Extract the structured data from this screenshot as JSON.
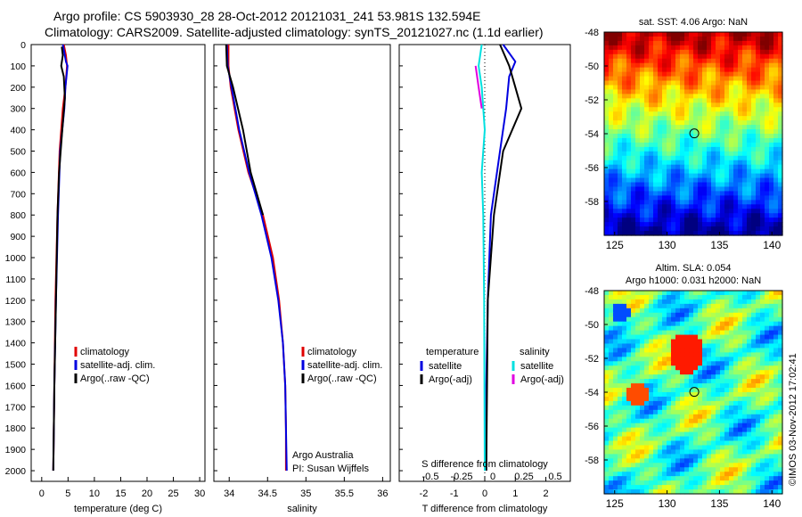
{
  "header": {
    "title_line1": "Argo profile: CS 5903930_28 28-Oct-2012 20121031_241 53.981S 132.594E",
    "title_line2": "Climatology: CARS2009. Satellite-adjusted climatology: synTS_20121027.nc (1.1d earlier)"
  },
  "chart_data": [
    {
      "type": "line",
      "xlabel": "temperature (deg C)",
      "xlim": [
        -2,
        31
      ],
      "xticks": [
        0,
        5,
        10,
        15,
        20,
        25,
        30
      ],
      "ylim": [
        0,
        2050
      ],
      "yticks": [
        0,
        100,
        200,
        300,
        400,
        500,
        600,
        700,
        800,
        900,
        1000,
        1100,
        1200,
        1300,
        1400,
        1500,
        1600,
        1700,
        1800,
        1900,
        2000
      ],
      "y_reversed": true,
      "legend": [
        "climatology",
        "satellite-adj. clim.",
        "Argo(..raw -QC)"
      ],
      "series": [
        {
          "name": "climatology",
          "color": "#e00000",
          "points": [
            [
              4.2,
              0
            ],
            [
              4.6,
              50
            ],
            [
              4.8,
              100
            ],
            [
              4.5,
              200
            ],
            [
              4.0,
              300
            ],
            [
              3.4,
              500
            ],
            [
              3.0,
              800
            ],
            [
              2.6,
              1200
            ],
            [
              2.4,
              1600
            ],
            [
              2.2,
              2000
            ]
          ]
        },
        {
          "name": "satellite-adj. clim.",
          "color": "#0000e0",
          "points": [
            [
              4.0,
              0
            ],
            [
              4.6,
              80
            ],
            [
              4.9,
              100
            ],
            [
              4.5,
              200
            ],
            [
              4.3,
              300
            ],
            [
              3.5,
              500
            ],
            [
              3.1,
              800
            ],
            [
              2.7,
              1200
            ],
            [
              2.4,
              1600
            ],
            [
              2.2,
              2000
            ]
          ]
        },
        {
          "name": "Argo(..raw -QC)",
          "color": "#000000",
          "points": [
            [
              3.8,
              10
            ],
            [
              4.0,
              50
            ],
            [
              3.7,
              100
            ],
            [
              4.2,
              150
            ],
            [
              4.4,
              250
            ],
            [
              3.9,
              400
            ],
            [
              3.3,
              600
            ],
            [
              3.0,
              800
            ],
            [
              2.7,
              1200
            ],
            [
              2.4,
              1600
            ],
            [
              2.3,
              1800
            ],
            [
              2.2,
              2000
            ]
          ]
        }
      ]
    },
    {
      "type": "line",
      "xlabel": "salinity",
      "xlim": [
        33.8,
        36.1
      ],
      "xticks": [
        34,
        34.5,
        35,
        35.5,
        36
      ],
      "ylim": [
        0,
        2050
      ],
      "y_reversed": true,
      "legend": [
        "climatology",
        "satellite-adj. clim.",
        "Argo(..raw -QC)"
      ],
      "annotations": [
        "Argo Australia",
        "PI: Susan Wijffels"
      ],
      "series": [
        {
          "name": "climatology",
          "color": "#e00000",
          "points": [
            [
              33.99,
              0
            ],
            [
              33.99,
              100
            ],
            [
              34.02,
              200
            ],
            [
              34.12,
              400
            ],
            [
              34.25,
              600
            ],
            [
              34.44,
              800
            ],
            [
              34.57,
              1000
            ],
            [
              34.65,
              1200
            ],
            [
              34.7,
              1400
            ],
            [
              34.73,
              1600
            ],
            [
              34.74,
              1800
            ],
            [
              34.74,
              2000
            ]
          ]
        },
        {
          "name": "satellite-adj. clim.",
          "color": "#0000e0",
          "points": [
            [
              33.97,
              0
            ],
            [
              33.98,
              100
            ],
            [
              34.03,
              200
            ],
            [
              34.13,
              400
            ],
            [
              34.26,
              600
            ],
            [
              34.42,
              800
            ],
            [
              34.55,
              1000
            ],
            [
              34.64,
              1200
            ],
            [
              34.7,
              1400
            ],
            [
              34.73,
              1600
            ],
            [
              34.74,
              1800
            ],
            [
              34.75,
              2000
            ]
          ]
        },
        {
          "name": "Argo(..raw -QC)",
          "color": "#000000",
          "points": [
            [
              33.96,
              0
            ],
            [
              33.97,
              100
            ],
            [
              34.05,
              200
            ],
            [
              34.18,
              400
            ],
            [
              34.28,
              600
            ],
            [
              34.44,
              800
            ]
          ]
        }
      ]
    },
    {
      "type": "line",
      "xlabel": "T difference from climatology",
      "xlabel_top": "S difference from climatology",
      "xlim": [
        -2.8,
        2.8
      ],
      "xticks": [
        -2,
        -1,
        0,
        1,
        2
      ],
      "xticks_top": [
        "-0.5",
        "-0.25",
        "0",
        "0.25",
        "0.5"
      ],
      "ylim": [
        0,
        2050
      ],
      "y_reversed": true,
      "legend_temperature_title": "temperature",
      "legend_salinity_title": "salinity",
      "legend": [
        "satellite",
        "Argo(-adj)",
        "satellite",
        "Argo(-adj)"
      ],
      "series": [
        {
          "name": "T satellite",
          "color": "#0000e0",
          "points": [
            [
              0.6,
              0
            ],
            [
              1.0,
              80
            ],
            [
              0.8,
              150
            ],
            [
              0.7,
              300
            ],
            [
              0.5,
              500
            ],
            [
              0.2,
              800
            ],
            [
              0.1,
              1200
            ],
            [
              0.05,
              1600
            ],
            [
              0.05,
              2000
            ]
          ]
        },
        {
          "name": "T Argo(-adj)",
          "color": "#000000",
          "points": [
            [
              0.5,
              0
            ],
            [
              0.8,
              100
            ],
            [
              1.0,
              200
            ],
            [
              1.2,
              300
            ],
            [
              0.6,
              500
            ],
            [
              0.3,
              800
            ],
            [
              0.1,
              1200
            ],
            [
              0.05,
              2000
            ]
          ]
        },
        {
          "name": "S satellite",
          "color": "#00e0e0",
          "points": [
            [
              -0.1,
              0
            ],
            [
              -0.2,
              100
            ],
            [
              -0.1,
              200
            ],
            [
              0,
              400
            ],
            [
              -0.1,
              600
            ],
            [
              -0.05,
              800
            ],
            [
              -0.02,
              1200
            ],
            [
              0,
              2000
            ]
          ]
        },
        {
          "name": "S Argo(-adj)",
          "color": "#e000e0",
          "points": [
            [
              -0.3,
              100
            ],
            [
              -0.2,
              200
            ],
            [
              -0.1,
              300
            ]
          ]
        }
      ]
    },
    {
      "type": "heatmap",
      "title": "sat. SST: 4.06 Argo: NaN",
      "xlim": [
        124,
        141
      ],
      "ylim": [
        -60,
        -48
      ],
      "xticks": [
        125,
        130,
        135,
        140
      ],
      "yticks": [
        -48,
        -50,
        -52,
        -54,
        -56,
        -58
      ],
      "marker": {
        "lon": 132.594,
        "lat": -53.981
      }
    },
    {
      "type": "heatmap",
      "title": "Altim. SLA: 0.054",
      "subtitle": "Argo h1000: 0.031 h2000: NaN",
      "xlim": [
        124,
        141
      ],
      "ylim": [
        -60,
        -48
      ],
      "xticks": [
        125,
        130,
        135,
        140
      ],
      "yticks": [
        -48,
        -50,
        -52,
        -54,
        -56,
        -58
      ],
      "marker": {
        "lon": 132.594,
        "lat": -53.981
      },
      "side_label": "©IMOS 03-Nov-2012 17:02:41"
    }
  ],
  "colors": {
    "climatology": "#e00000",
    "satellite": "#0000e0",
    "argo": "#000000",
    "s_satellite": "#00e0e0",
    "s_argo": "#e000e0"
  }
}
